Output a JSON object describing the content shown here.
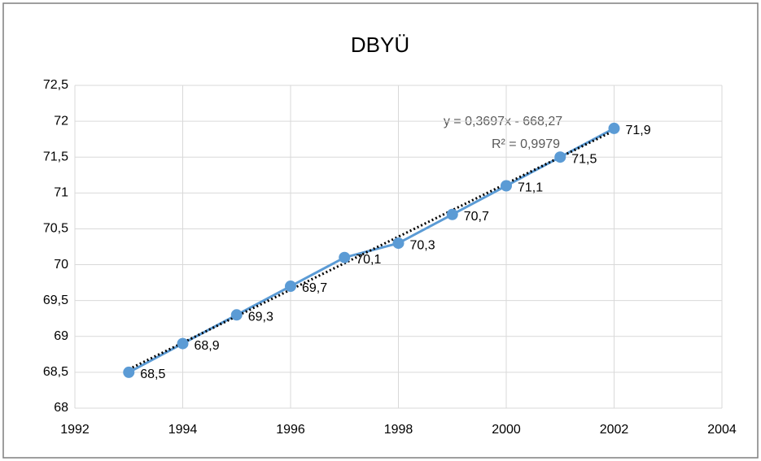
{
  "chart_data": {
    "type": "scatter-line",
    "title": "DBYÜ",
    "x": [
      1993,
      1994,
      1995,
      1996,
      1997,
      1998,
      1999,
      2000,
      2001,
      2002
    ],
    "values": [
      68.5,
      68.9,
      69.3,
      69.7,
      70.1,
      70.3,
      70.7,
      71.1,
      71.5,
      71.9
    ],
    "value_labels": [
      "68,5",
      "68,9",
      "69,3",
      "69,7",
      "70,1",
      "70,3",
      "70,7",
      "71,1",
      "71,5",
      "71,9"
    ],
    "color": "#5b9bd5",
    "xlim": [
      1992,
      2004
    ],
    "xticks": [
      1992,
      1994,
      1996,
      1998,
      2000,
      2002,
      2004
    ],
    "ylim": [
      68,
      72.5
    ],
    "yticks": [
      68,
      {
        "value": 68.5,
        "label": "68,5"
      },
      69,
      {
        "value": 69.5,
        "label": "69,5"
      },
      70,
      {
        "value": 70.5,
        "label": "70,5"
      },
      71,
      {
        "value": 71.5,
        "label": "71,5"
      },
      72,
      {
        "value": 72.5,
        "label": "72,5"
      }
    ],
    "grid": true,
    "trendline": {
      "slope": 0.3697,
      "intercept": -668.27,
      "color": "#000000",
      "equation": "y = 0,3697x - 668,27",
      "r2_label": "R² = 0,9979"
    }
  }
}
